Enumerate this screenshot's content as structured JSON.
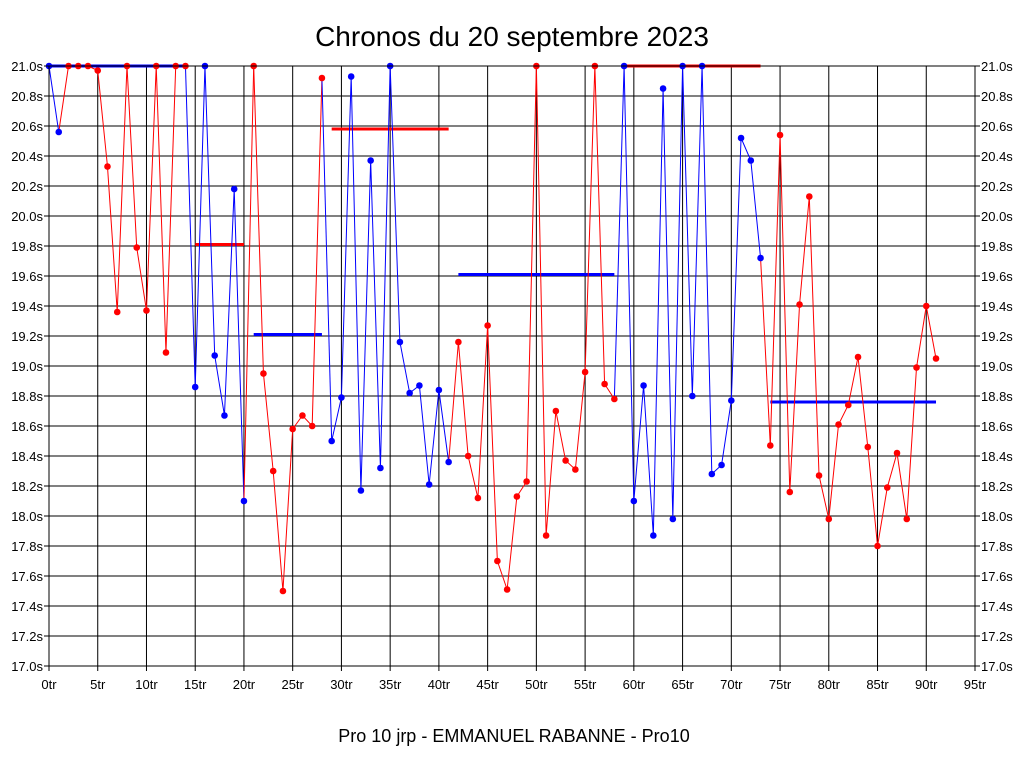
{
  "chart_data": {
    "type": "line",
    "title": "Chronos du 20 septembre 2023",
    "caption": "Pro 10 jrp - EMMANUEL RABANNE - Pro10",
    "xlabel": "",
    "ylabel": "",
    "x_ticks": [
      "0tr",
      "5tr",
      "10tr",
      "15tr",
      "20tr",
      "25tr",
      "30tr",
      "35tr",
      "40tr",
      "45tr",
      "50tr",
      "55tr",
      "60tr",
      "65tr",
      "70tr",
      "75tr",
      "80tr",
      "85tr",
      "90tr",
      "95tr"
    ],
    "x_tick_values": [
      0,
      5,
      10,
      15,
      20,
      25,
      30,
      35,
      40,
      45,
      50,
      55,
      60,
      65,
      70,
      75,
      80,
      85,
      90,
      95
    ],
    "y_ticks": [
      "17.0s",
      "17.2s",
      "17.4s",
      "17.6s",
      "17.8s",
      "18.0s",
      "18.2s",
      "18.4s",
      "18.6s",
      "18.8s",
      "19.0s",
      "19.2s",
      "19.4s",
      "19.6s",
      "19.8s",
      "20.0s",
      "20.2s",
      "20.4s",
      "20.6s",
      "20.8s",
      "21.0s"
    ],
    "y_tick_values": [
      17.0,
      17.2,
      17.4,
      17.6,
      17.8,
      18.0,
      18.2,
      18.4,
      18.6,
      18.8,
      19.0,
      19.2,
      19.4,
      19.6,
      19.8,
      20.0,
      20.2,
      20.4,
      20.6,
      20.8,
      21.0
    ],
    "xlim": [
      0,
      95
    ],
    "ylim": [
      17.0,
      21.0
    ],
    "grid": true,
    "colors": {
      "blue": "#0000ff",
      "red": "#ff0000",
      "grid": "#000000",
      "frame": "#000000"
    },
    "series": [
      {
        "color": "#0000ff",
        "points": [
          [
            0,
            21.0
          ],
          [
            1,
            20.56
          ]
        ]
      },
      {
        "color": "#ff0000",
        "points": [
          [
            2,
            21.0
          ],
          [
            3,
            21.0
          ],
          [
            4,
            21.0
          ],
          [
            5,
            20.97
          ],
          [
            6,
            20.33
          ],
          [
            7,
            19.36
          ],
          [
            8,
            21.0
          ],
          [
            9,
            19.79
          ],
          [
            10,
            19.37
          ],
          [
            11,
            21.0
          ],
          [
            12,
            19.09
          ],
          [
            13,
            21.0
          ],
          [
            14,
            21.0
          ]
        ]
      },
      {
        "color": "#0000ff",
        "points": [
          [
            15,
            18.86
          ],
          [
            16,
            21.0
          ],
          [
            17,
            19.07
          ],
          [
            18,
            18.67
          ],
          [
            19,
            20.18
          ],
          [
            20,
            18.1
          ]
        ]
      },
      {
        "color": "#ff0000",
        "points": [
          [
            21,
            21.0
          ],
          [
            22,
            18.95
          ],
          [
            23,
            18.3
          ],
          [
            24,
            17.5
          ],
          [
            25,
            18.58
          ],
          [
            26,
            18.67
          ],
          [
            27,
            18.6
          ],
          [
            28,
            20.92
          ]
        ]
      },
      {
        "color": "#0000ff",
        "points": [
          [
            29,
            18.5
          ],
          [
            30,
            18.79
          ],
          [
            31,
            20.93
          ],
          [
            32,
            18.17
          ],
          [
            33,
            20.37
          ],
          [
            34,
            18.32
          ],
          [
            35,
            21.0
          ],
          [
            36,
            19.16
          ],
          [
            37,
            18.82
          ],
          [
            38,
            18.87
          ],
          [
            39,
            18.21
          ],
          [
            40,
            18.84
          ],
          [
            41,
            18.36
          ]
        ]
      },
      {
        "color": "#ff0000",
        "points": [
          [
            42,
            19.16
          ],
          [
            43,
            18.4
          ],
          [
            44,
            18.12
          ],
          [
            45,
            19.27
          ],
          [
            46,
            17.7
          ],
          [
            47,
            17.51
          ],
          [
            48,
            18.13
          ],
          [
            49,
            18.23
          ],
          [
            50,
            21.0
          ],
          [
            51,
            17.87
          ],
          [
            52,
            18.7
          ],
          [
            53,
            18.37
          ],
          [
            54,
            18.31
          ],
          [
            55,
            18.96
          ],
          [
            56,
            21.0
          ],
          [
            57,
            18.88
          ],
          [
            58,
            18.78
          ]
        ]
      },
      {
        "color": "#0000ff",
        "points": [
          [
            59,
            21.0
          ],
          [
            60,
            18.1
          ],
          [
            61,
            18.87
          ],
          [
            62,
            17.87
          ],
          [
            63,
            20.85
          ],
          [
            64,
            17.98
          ],
          [
            65,
            21.0
          ],
          [
            66,
            18.8
          ],
          [
            67,
            21.0
          ],
          [
            68,
            18.28
          ],
          [
            69,
            18.34
          ],
          [
            70,
            18.77
          ],
          [
            71,
            20.52
          ],
          [
            72,
            20.37
          ],
          [
            73,
            19.72
          ]
        ]
      },
      {
        "color": "#ff0000",
        "points": [
          [
            74,
            18.47
          ],
          [
            75,
            20.54
          ],
          [
            76,
            18.16
          ],
          [
            77,
            19.41
          ],
          [
            78,
            20.13
          ],
          [
            79,
            18.27
          ],
          [
            80,
            17.98
          ],
          [
            81,
            18.61
          ],
          [
            82,
            18.74
          ],
          [
            83,
            19.06
          ],
          [
            84,
            18.46
          ],
          [
            85,
            17.8
          ],
          [
            86,
            18.19
          ],
          [
            87,
            18.42
          ],
          [
            88,
            17.98
          ],
          [
            89,
            18.99
          ],
          [
            90,
            19.4
          ],
          [
            91,
            19.05
          ]
        ]
      }
    ],
    "averages": [
      {
        "color": "#0000ff",
        "x": [
          0,
          14
        ],
        "y": 21.0
      },
      {
        "color": "#ff0000",
        "x": [
          15,
          20
        ],
        "y": 19.81
      },
      {
        "color": "#0000ff",
        "x": [
          21,
          28
        ],
        "y": 19.21
      },
      {
        "color": "#ff0000",
        "x": [
          29,
          41
        ],
        "y": 20.58
      },
      {
        "color": "#0000ff",
        "x": [
          42,
          58
        ],
        "y": 19.61
      },
      {
        "color": "#ff0000",
        "x": [
          59,
          73
        ],
        "y": 21.0
      },
      {
        "color": "#0000ff",
        "x": [
          74,
          91
        ],
        "y": 18.76
      }
    ]
  }
}
